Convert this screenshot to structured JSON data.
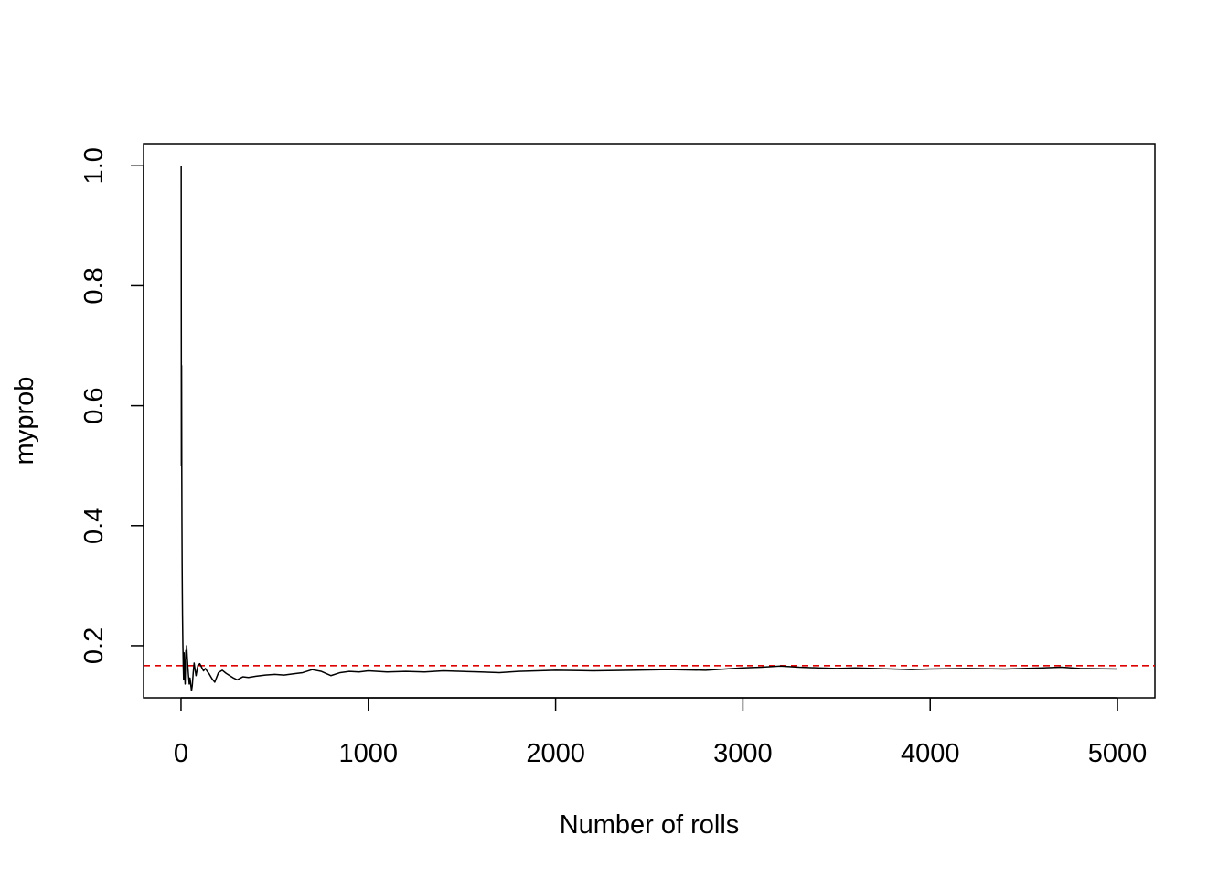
{
  "chart_data": {
    "type": "line",
    "title": "",
    "xlabel": "Number of rolls",
    "ylabel": "myprob",
    "xlim": [
      -200,
      5200
    ],
    "ylim": [
      0.113,
      1.037
    ],
    "x_ticks": [
      {
        "value": 0,
        "label": "0"
      },
      {
        "value": 1000,
        "label": "1000"
      },
      {
        "value": 2000,
        "label": "2000"
      },
      {
        "value": 3000,
        "label": "3000"
      },
      {
        "value": 4000,
        "label": "4000"
      },
      {
        "value": 5000,
        "label": "5000"
      }
    ],
    "y_ticks": [
      {
        "value": 0.2,
        "label": "0.2"
      },
      {
        "value": 0.4,
        "label": "0.4"
      },
      {
        "value": 0.6,
        "label": "0.6"
      },
      {
        "value": 0.8,
        "label": "0.8"
      },
      {
        "value": 1.0,
        "label": "1.0"
      }
    ],
    "grid": false,
    "series": [
      {
        "color": "#000000",
        "x": [
          1,
          2,
          3,
          4,
          5,
          6,
          7,
          8,
          10,
          12,
          14,
          16,
          18,
          20,
          22,
          24,
          26,
          28,
          30,
          33,
          36,
          40,
          44,
          48,
          52,
          56,
          60,
          65,
          70,
          75,
          80,
          90,
          100,
          110,
          120,
          130,
          140,
          150,
          165,
          180,
          200,
          220,
          240,
          260,
          280,
          300,
          330,
          360,
          400,
          450,
          500,
          550,
          600,
          650,
          700,
          750,
          800,
          850,
          900,
          950,
          1000,
          1100,
          1200,
          1300,
          1400,
          1500,
          1600,
          1700,
          1800,
          1900,
          2000,
          2200,
          2400,
          2600,
          2800,
          3000,
          3100,
          3200,
          3300,
          3400,
          3500,
          3600,
          3700,
          3800,
          3900,
          4000,
          4200,
          4400,
          4600,
          4700,
          4800,
          5000
        ],
        "values": [
          1.0,
          0.5,
          0.667,
          0.5,
          0.4,
          0.333,
          0.286,
          0.25,
          0.2,
          0.167,
          0.143,
          0.188,
          0.167,
          0.15,
          0.136,
          0.167,
          0.192,
          0.179,
          0.2,
          0.182,
          0.167,
          0.15,
          0.136,
          0.146,
          0.135,
          0.125,
          0.133,
          0.154,
          0.171,
          0.16,
          0.15,
          0.167,
          0.17,
          0.164,
          0.158,
          0.162,
          0.157,
          0.153,
          0.145,
          0.139,
          0.155,
          0.159,
          0.154,
          0.15,
          0.146,
          0.143,
          0.148,
          0.147,
          0.149,
          0.151,
          0.152,
          0.151,
          0.153,
          0.155,
          0.16,
          0.157,
          0.15,
          0.155,
          0.157,
          0.156,
          0.158,
          0.156,
          0.157,
          0.156,
          0.158,
          0.157,
          0.156,
          0.155,
          0.157,
          0.158,
          0.159,
          0.158,
          0.159,
          0.16,
          0.159,
          0.163,
          0.164,
          0.166,
          0.164,
          0.163,
          0.162,
          0.163,
          0.162,
          0.161,
          0.16,
          0.161,
          0.162,
          0.161,
          0.163,
          0.164,
          0.162,
          0.161
        ]
      }
    ],
    "reference_line": {
      "orientation": "horizontal",
      "value": 0.1667,
      "color": "#dd0000",
      "style": "dashed"
    }
  }
}
